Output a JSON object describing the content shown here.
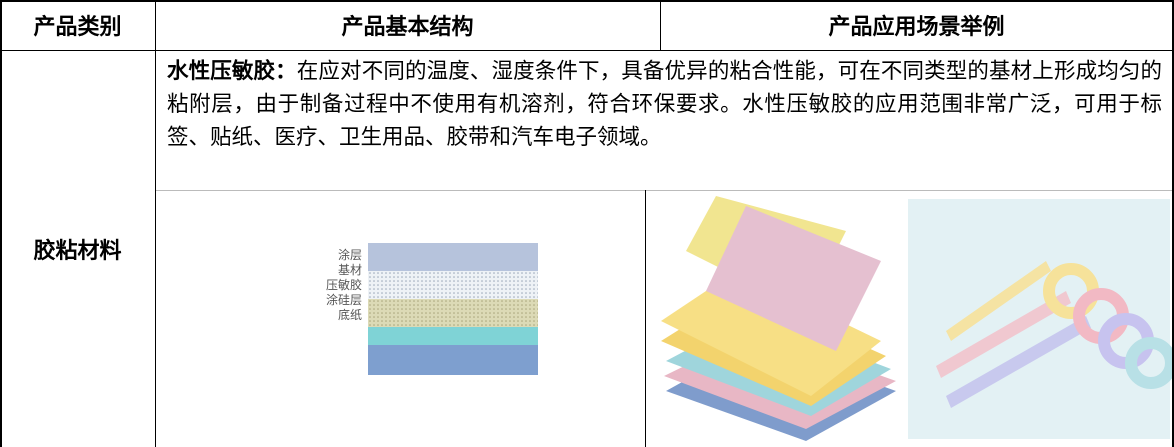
{
  "table": {
    "header": [
      "产品类别",
      "产品基本结构",
      "产品应用场景举例"
    ],
    "rows": [
      {
        "category": "胶粘材料",
        "description_lead": "水性压敏胶：",
        "description": "在应对不同的温度、湿度条件下，具备优异的粘合性能，可在不同类型的基材上形成均匀的粘附层，由于制备过程中不使用有机溶剂，符合环保要求。水性压敏胶的应用范围非常广泛，可用于标签、贴纸、医疗、卫生用品、胶带和汽车电子领域。",
        "structure_layers": [
          "涂层",
          "基材",
          "压敏胶",
          "涂硅层",
          "底纸"
        ]
      }
    ]
  }
}
